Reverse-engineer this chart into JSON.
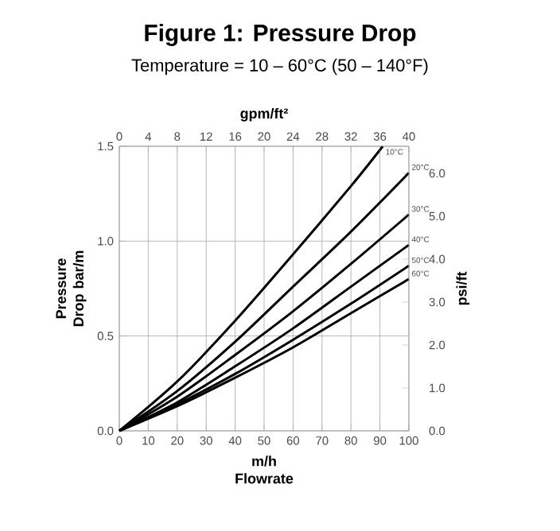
{
  "chart_data": {
    "type": "line",
    "title": "Figure 1: Pressure Drop",
    "subtitle": "Temperature = 10 – 60°C (50 – 140°F)",
    "xlabel": "m/h Flowrate",
    "ylabel": "Pressure Drop bar/m",
    "y2label": "psi/ft",
    "x2label": "gpm/ft²",
    "x": [
      0,
      20,
      40,
      60,
      80,
      100
    ],
    "series": [
      {
        "name": "10°C",
        "color": "#000000",
        "x": [
          0,
          20,
          40,
          60,
          80,
          91
        ],
        "values": [
          0,
          0.26,
          0.58,
          0.93,
          1.29,
          1.5
        ]
      },
      {
        "name": "20°C",
        "color": "#000000",
        "values": [
          0,
          0.21,
          0.47,
          0.76,
          1.05,
          1.36
        ]
      },
      {
        "name": "30°C",
        "color": "#000000",
        "values": [
          0,
          0.18,
          0.4,
          0.63,
          0.88,
          1.14
        ]
      },
      {
        "name": "40°C",
        "color": "#000000",
        "values": [
          0,
          0.15,
          0.34,
          0.54,
          0.76,
          0.98
        ]
      },
      {
        "name": "50°C",
        "color": "#000000",
        "values": [
          0,
          0.14,
          0.3,
          0.48,
          0.67,
          0.87
        ]
      },
      {
        "name": "60°C",
        "color": "#000000",
        "values": [
          0,
          0.13,
          0.28,
          0.44,
          0.62,
          0.8
        ]
      }
    ],
    "xlim": [
      0,
      100
    ],
    "xticks": [
      0,
      10,
      20,
      30,
      40,
      50,
      60,
      70,
      80,
      90,
      100
    ],
    "x2lim": [
      0,
      40
    ],
    "x2ticks": [
      0,
      4,
      8,
      12,
      16,
      20,
      24,
      28,
      32,
      36,
      40
    ],
    "ylim": [
      0,
      1.5
    ],
    "yticks": [
      {
        "value": 0,
        "label": "0.0"
      },
      {
        "value": 0.5,
        "label": "0.5"
      },
      {
        "value": 1,
        "label": "1.0"
      },
      {
        "value": 1.5,
        "label": "1.5"
      }
    ],
    "y2lim": [
      0,
      6.63
    ],
    "y2ticks": [
      {
        "value": 0,
        "label": "0.0"
      },
      {
        "value": 1,
        "label": "1.0"
      },
      {
        "value": 2,
        "label": "2.0"
      },
      {
        "value": 3,
        "label": "3.0"
      },
      {
        "value": 4,
        "label": "4.0"
      },
      {
        "value": 5,
        "label": "5.0"
      },
      {
        "value": 6,
        "label": "6.0"
      }
    ],
    "grid": true
  }
}
